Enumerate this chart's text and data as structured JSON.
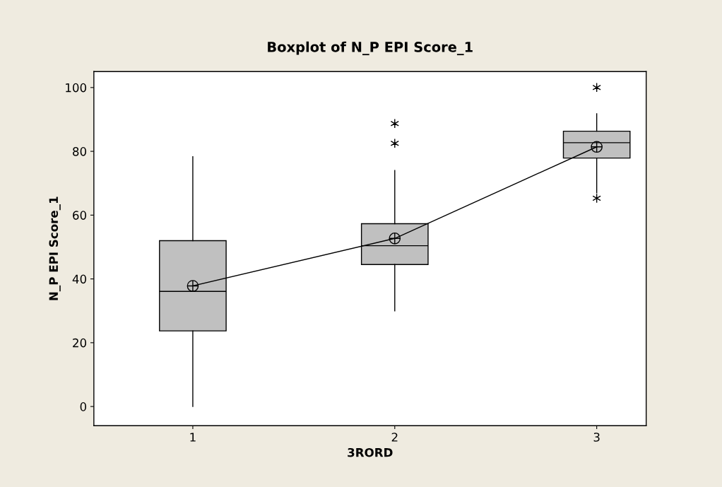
{
  "chart_data": {
    "type": "box",
    "title": "Boxplot of N_P EPI Score_1",
    "xlabel": "3RORD",
    "ylabel": "N_P EPI Score_1",
    "categories": [
      "1",
      "2",
      "3"
    ],
    "boxes": [
      {
        "low": 0,
        "q1": 23.7,
        "median": 36.1,
        "q3": 52,
        "high": 78.3
      },
      {
        "low": 30,
        "q1": 44.5,
        "median": 50.4,
        "q3": 57.3,
        "high": 74,
        "outliers": [
          82.5,
          88.7
        ]
      },
      {
        "low": 67,
        "q1": 77.9,
        "median": 82.7,
        "q3": 86.3,
        "high": 91.8,
        "outliers": [
          65.3,
          100
        ]
      }
    ],
    "color": "#c0c0c0",
    "series": [
      {
        "type": "line",
        "color": "#000000",
        "values": [
          37.8,
          52.7,
          81.4
        ],
        "marker": "circle"
      }
    ],
    "ylim": [
      -6,
      105
    ],
    "yticks": [
      0,
      20,
      40,
      60,
      80,
      100
    ],
    "grid": false
  }
}
